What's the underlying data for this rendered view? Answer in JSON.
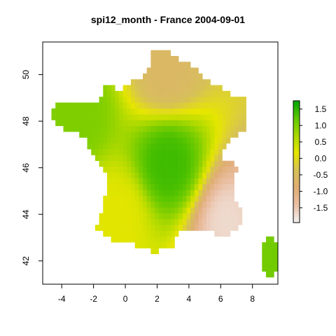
{
  "title": "spi12_month - France 2004-09-01",
  "chart_data": {
    "type": "heatmap",
    "title": "spi12_month - France 2004-09-01",
    "xlabel": "",
    "ylabel": "",
    "xlim": [
      -5.2,
      9.6
    ],
    "ylim": [
      41.0,
      51.4
    ],
    "x_ticks": [
      -4,
      -2,
      0,
      2,
      4,
      6,
      8
    ],
    "y_ticks": [
      42,
      44,
      46,
      48,
      50
    ],
    "colorbar": {
      "min": -1.95,
      "max": 1.75,
      "ticks": [
        1.5,
        1.0,
        0.5,
        0.0,
        -0.5,
        -1.0,
        -1.5
      ],
      "tick_labels": [
        "1.5",
        "1.0",
        "0.5",
        "0.0",
        "-0.5",
        "-1.0",
        "-1.5"
      ],
      "colors": [
        "#f2f2f2",
        "#eabfa5",
        "#e0ad75",
        "#d6c157",
        "#e6e600",
        "#a8d800",
        "#5fc700",
        "#00a600"
      ]
    },
    "regions": [
      {
        "name": "north",
        "approx_lon": 2.6,
        "approx_lat": 50.2,
        "spi12": -0.6
      },
      {
        "name": "northwest",
        "approx_lon": -3.0,
        "approx_lat": 48.3,
        "spi12": 1.0
      },
      {
        "name": "centre",
        "approx_lon": 2.7,
        "approx_lat": 46.2,
        "spi12": 1.4
      },
      {
        "name": "southwest",
        "approx_lon": -0.5,
        "approx_lat": 44.0,
        "spi12": 0.2
      },
      {
        "name": "southeast",
        "approx_lon": 6.6,
        "approx_lat": 43.6,
        "spi12": -1.7
      },
      {
        "name": "corsica",
        "approx_lon": 9.1,
        "approx_lat": 42.2,
        "spi12": 1.1
      }
    ]
  }
}
